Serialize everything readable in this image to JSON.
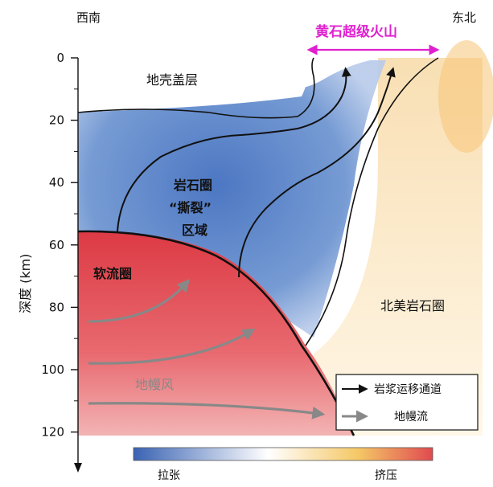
{
  "direction": {
    "west": "西南",
    "east": "东北"
  },
  "volcano": {
    "label": "黄石超级火山",
    "color": "#e020d0"
  },
  "axis": {
    "label": "深度 (km)",
    "ticks": [
      "0",
      "20",
      "40",
      "60",
      "80",
      "100",
      "120"
    ]
  },
  "regions": {
    "crust": "地壳盖层",
    "tear_line1": "岩石圈",
    "tear_line2": "“撕裂”",
    "tear_line3": "区域",
    "asthenosphere": "软流圈",
    "mantle_wind": "地幔风",
    "na_lithosphere": "北美岩石圈"
  },
  "legend": {
    "magma": "岩浆运移通道",
    "mantle_flow": "地幔流"
  },
  "colorbar": {
    "low": "拉张",
    "high": "挤压",
    "colors": [
      "#3a63b3",
      "#ffffff",
      "#f5c866",
      "#e04a50"
    ]
  }
}
